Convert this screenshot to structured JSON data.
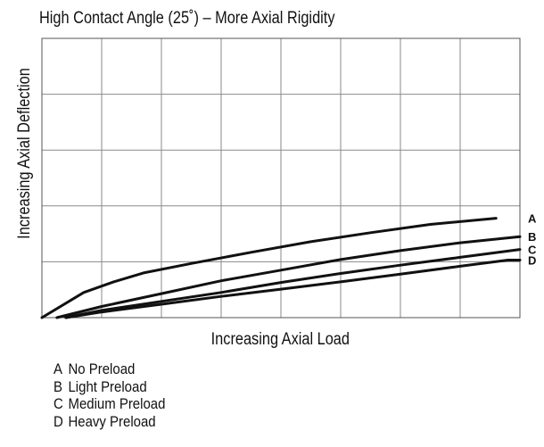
{
  "chart_data": {
    "type": "line",
    "title": "High Contact Angle (25˚) – More Axial Rigidity",
    "xlabel": "Increasing Axial Load",
    "ylabel": "Increasing Axial Deflection",
    "xlim": [
      0,
      8
    ],
    "ylim": [
      0,
      5
    ],
    "grid": true,
    "x_tick_labels": [],
    "y_tick_labels": [],
    "series": [
      {
        "name": "A",
        "x": [
          0,
          0.7,
          1.2,
          1.7,
          2.5,
          3.5,
          4.5,
          5.5,
          6.5,
          7.6
        ],
        "y": [
          0,
          0.45,
          0.64,
          0.8,
          0.97,
          1.17,
          1.36,
          1.52,
          1.67,
          1.78
        ]
      },
      {
        "name": "B",
        "x": [
          0.25,
          1,
          2,
          3,
          4,
          5,
          6,
          7,
          8
        ],
        "y": [
          0,
          0.2,
          0.43,
          0.66,
          0.85,
          1.04,
          1.2,
          1.34,
          1.45
        ]
      },
      {
        "name": "C",
        "x": [
          0.4,
          1,
          2,
          3,
          4,
          5,
          6,
          7,
          8
        ],
        "y": [
          0,
          0.13,
          0.29,
          0.45,
          0.63,
          0.79,
          0.94,
          1.08,
          1.22
        ]
      },
      {
        "name": "D",
        "x": [
          0.4,
          1,
          2,
          3,
          4,
          5,
          6,
          7,
          7.8,
          8
        ],
        "y": [
          0,
          0.1,
          0.24,
          0.38,
          0.51,
          0.64,
          0.78,
          0.92,
          1.03,
          1.03
        ]
      }
    ]
  },
  "legend": [
    {
      "key": "A",
      "label": "No Preload"
    },
    {
      "key": "B",
      "label": "Light Preload"
    },
    {
      "key": "C",
      "label": "Medium Preload"
    },
    {
      "key": "D",
      "label": "Heavy Preload"
    }
  ]
}
